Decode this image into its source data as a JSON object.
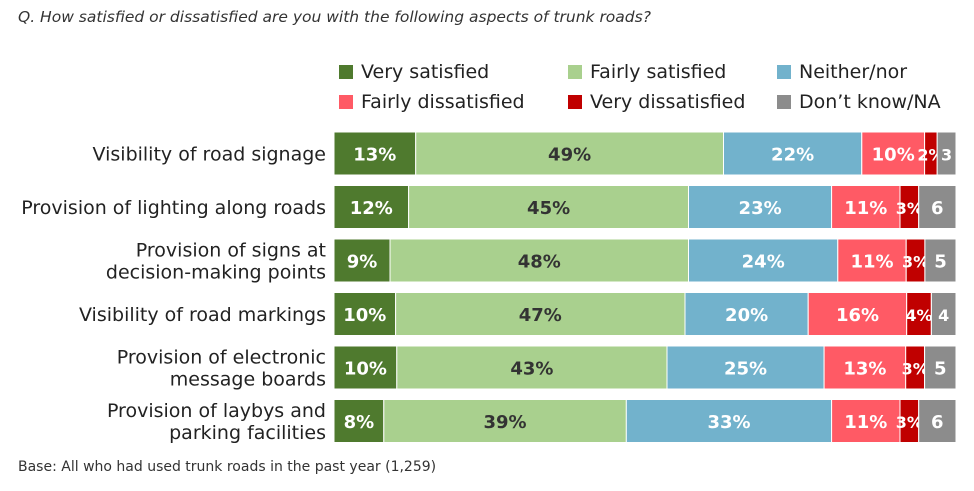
{
  "question": "Q. How satisfied or dissatisfied are you with the following aspects of trunk roads?",
  "base_note": "Base: All who had used trunk roads in the past year (1,259)",
  "chart_data": {
    "type": "bar",
    "orientation": "horizontal",
    "stacked": true,
    "percent_scale": true,
    "categories": [
      [
        "Visibility of road signage"
      ],
      [
        "Provision of lighting along roads"
      ],
      [
        "Provision of signs at",
        "decision-making points"
      ],
      [
        "Visibility of road markings"
      ],
      [
        "Provision of electronic",
        "message boards"
      ],
      [
        "Provision of laybys and",
        "parking facilities"
      ]
    ],
    "series": [
      {
        "name": "Very satisfied",
        "color": "#4f7a2e",
        "values": [
          13,
          12,
          9,
          10,
          10,
          8
        ],
        "labels": [
          "13%",
          "12%",
          "9%",
          "10%",
          "10%",
          "8%"
        ],
        "label_color": "#ffffff"
      },
      {
        "name": "Fairly satisfied",
        "color": "#a9d08e",
        "values": [
          49,
          45,
          48,
          47,
          43,
          39
        ],
        "labels": [
          "49%",
          "45%",
          "48%",
          "47%",
          "43%",
          "39%"
        ],
        "label_color": "#333333"
      },
      {
        "name": "Neither/nor",
        "color": "#72b2cc",
        "values": [
          22,
          23,
          24,
          20,
          25,
          33
        ],
        "labels": [
          "22%",
          "23%",
          "24%",
          "20%",
          "25%",
          "33%"
        ],
        "label_color": "#ffffff"
      },
      {
        "name": "Fairly dissatisfied",
        "color": "#ff5a65",
        "values": [
          10,
          11,
          11,
          16,
          13,
          11
        ],
        "labels": [
          "10%",
          "11%",
          "11%",
          "16%",
          "13%",
          "11%"
        ],
        "label_color": "#ffffff"
      },
      {
        "name": "Very dissatisfied",
        "color": "#c00000",
        "values": [
          2,
          3,
          3,
          4,
          3,
          3
        ],
        "labels": [
          "2%",
          "3%",
          "3%",
          "4%",
          "3%",
          "3%"
        ],
        "label_color": "#ffffff"
      },
      {
        "name": "Don’t know/NA",
        "color": "#8c8c8c",
        "values": [
          3,
          6,
          5,
          4,
          5,
          6
        ],
        "labels": [
          "3",
          "6",
          "5",
          "4",
          "5",
          "6"
        ],
        "label_color": "#ffffff"
      }
    ],
    "legend_position": "top"
  }
}
